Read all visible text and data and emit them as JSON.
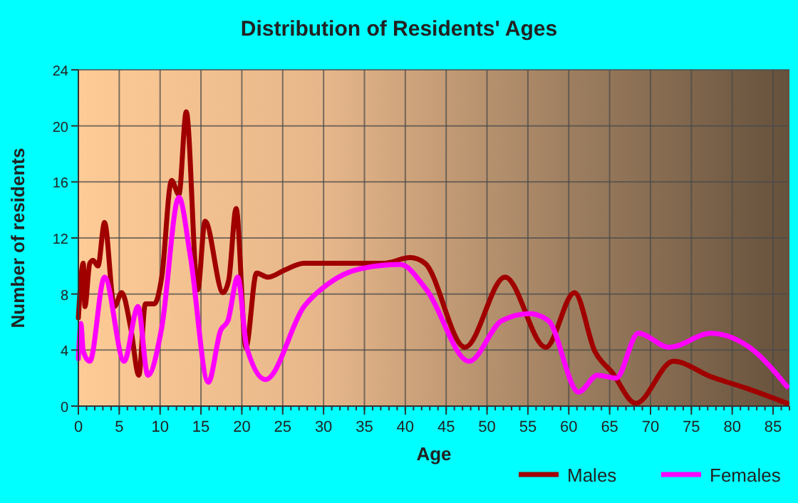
{
  "chart_data": {
    "type": "line",
    "title": "Distribution of Residents' Ages",
    "xlabel": "Age",
    "ylabel": "Number of residents",
    "xlim": [
      0,
      87
    ],
    "xticks": [
      0,
      5,
      10,
      15,
      20,
      25,
      30,
      35,
      40,
      45,
      50,
      55,
      60,
      65,
      70,
      75,
      80,
      85
    ],
    "ylim": [
      0,
      24
    ],
    "yticks": [
      0,
      4,
      8,
      12,
      16,
      20,
      24
    ],
    "grid": true,
    "legend": "bottom right",
    "marker": "none",
    "line_style": "solid",
    "series": [
      {
        "name": "Males",
        "color": "#a00000",
        "x": [
          0,
          0.6,
          0.8,
          1.4,
          1.8,
          2.4,
          3.2,
          4.4,
          5.3,
          6.4,
          7.4,
          8.2,
          9.3,
          10.2,
          11.4,
          12.3,
          13.2,
          14.6,
          15.5,
          17.7,
          18.4,
          19.3,
          20.5,
          21.8,
          23.2,
          25.2,
          27.6,
          30,
          37.4,
          40.6,
          42.4,
          47.3,
          52.2,
          57.2,
          60.7,
          63.2,
          65.3,
          68.2,
          72.8,
          77.4,
          82.1,
          86.7
        ],
        "values": [
          6.3,
          10.2,
          7.1,
          10.2,
          10.4,
          10,
          13.1,
          7.1,
          8.1,
          5.6,
          2.2,
          7.3,
          7.3,
          9.2,
          16.1,
          15.1,
          21,
          8.3,
          13.2,
          8.1,
          9,
          14.1,
          4.2,
          9.5,
          9.2,
          9.7,
          10.2,
          10.2,
          10.2,
          10.6,
          10.2,
          4.2,
          9.2,
          4.2,
          8.1,
          3.9,
          2.4,
          0.2,
          3.2,
          2.1,
          1.2,
          0.2
        ]
      },
      {
        "name": "Females",
        "color": "#ff00ff",
        "x": [
          0,
          0.3,
          0.6,
          1.4,
          3.2,
          5.6,
          7.3,
          8.5,
          10.2,
          12.3,
          13.7,
          15.9,
          17.4,
          18.3,
          19.5,
          20.6,
          22.9,
          27.6,
          30.5,
          34.5,
          39.4,
          42.6,
          47.8,
          51.8,
          55.2,
          57.5,
          61.2,
          63.5,
          65.8,
          68.5,
          72.3,
          77.4,
          82.1,
          86.7
        ],
        "values": [
          3.4,
          5.9,
          3.9,
          3.2,
          9.2,
          3.2,
          7.1,
          2.2,
          5.6,
          14.9,
          10.7,
          1.7,
          5.4,
          6.1,
          9.2,
          4.2,
          1.9,
          7.1,
          8.7,
          9.8,
          10.1,
          8.3,
          3.2,
          6.1,
          6.6,
          6.1,
          1,
          2.2,
          2,
          5.2,
          4.2,
          5.2,
          4.2,
          1.4
        ]
      }
    ]
  }
}
